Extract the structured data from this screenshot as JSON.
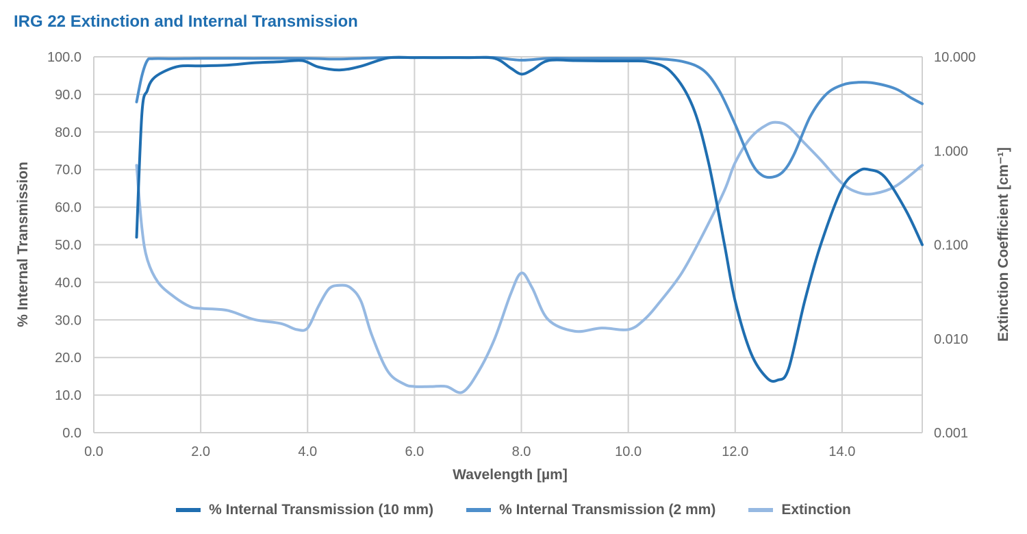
{
  "chart_data": {
    "type": "line",
    "title": "IRG 22 Extinction and Internal Transmission",
    "xlabel": "Wavelength [µm]",
    "ylabel_left": "% Internal Transmission",
    "ylabel_right": "Extinction Coefficient [cm⁻¹]",
    "xlim": [
      0,
      15.5
    ],
    "ylim_left": [
      0,
      100
    ],
    "ylim_right_log": [
      0.001,
      10
    ],
    "x_ticks": [
      "0.0",
      "2.0",
      "4.0",
      "6.0",
      "8.0",
      "10.0",
      "12.0",
      "14.0"
    ],
    "y_ticks_left": [
      "0.0",
      "10.0",
      "20.0",
      "30.0",
      "40.0",
      "50.0",
      "60.0",
      "70.0",
      "80.0",
      "90.0",
      "100.0"
    ],
    "y_ticks_right": [
      "0.001",
      "0.010",
      "0.100",
      "1.000",
      "10.000"
    ],
    "grid": true,
    "legend_position": "bottom",
    "series": [
      {
        "name": "% Internal Transmission (10 mm)",
        "axis": "left",
        "color": "#1f6eb0",
        "x": [
          0.8,
          0.9,
          1.0,
          1.1,
          1.3,
          1.6,
          2.0,
          2.5,
          3.0,
          3.5,
          3.9,
          4.2,
          4.6,
          5.0,
          5.5,
          6.0,
          6.5,
          7.0,
          7.5,
          7.8,
          8.0,
          8.2,
          8.5,
          9.0,
          9.5,
          10.0,
          10.4,
          10.8,
          11.2,
          11.5,
          11.8,
          12.0,
          12.3,
          12.6,
          12.8,
          13.0,
          13.3,
          13.6,
          14.0,
          14.3,
          14.5,
          14.8,
          15.2,
          15.5
        ],
        "y": [
          52,
          85,
          91,
          94,
          96,
          97.5,
          97.6,
          97.8,
          98.4,
          98.7,
          99,
          97.3,
          96.5,
          97.5,
          99.7,
          99.8,
          99.8,
          99.8,
          99.6,
          97,
          95.4,
          96.5,
          99,
          99,
          98.9,
          98.9,
          98.6,
          96,
          87,
          72,
          50,
          35,
          21,
          14.5,
          14,
          17,
          35,
          50,
          65,
          69.5,
          70,
          68,
          59,
          50
        ]
      },
      {
        "name": "% Internal Transmission (2 mm)",
        "axis": "left",
        "color": "#4e8fcb",
        "x": [
          0.8,
          0.9,
          1.0,
          1.1,
          1.5,
          2.0,
          3.0,
          4.0,
          4.5,
          5.0,
          5.5,
          6.0,
          7.0,
          7.5,
          8.0,
          8.5,
          9.0,
          10.0,
          10.5,
          11.0,
          11.4,
          11.7,
          12.0,
          12.3,
          12.5,
          12.7,
          12.9,
          13.1,
          13.4,
          13.7,
          14.0,
          14.3,
          14.6,
          15.0,
          15.3,
          15.5
        ],
        "y": [
          88,
          95,
          99,
          99.5,
          99.5,
          99.6,
          99.6,
          99.6,
          99.4,
          99.6,
          99.8,
          99.8,
          99.8,
          99.8,
          99.1,
          99.6,
          99.6,
          99.6,
          99.5,
          98.8,
          96.5,
          91,
          82,
          72,
          68.5,
          68,
          69.5,
          74,
          84,
          90,
          92.5,
          93.2,
          93,
          91.5,
          89,
          87.5
        ]
      },
      {
        "name": "Extinction",
        "axis": "right",
        "color": "#96b9e2",
        "x": [
          0.8,
          0.9,
          1.0,
          1.2,
          1.5,
          1.8,
          2.0,
          2.5,
          3.0,
          3.5,
          3.8,
          4.0,
          4.2,
          4.4,
          4.6,
          4.8,
          5.0,
          5.2,
          5.5,
          5.8,
          6.0,
          6.3,
          6.6,
          6.9,
          7.2,
          7.5,
          7.8,
          8.0,
          8.2,
          8.5,
          9.0,
          9.5,
          10.0,
          10.3,
          10.6,
          11.0,
          11.4,
          11.8,
          12.0,
          12.3,
          12.6,
          12.8,
          13.0,
          13.3,
          13.6,
          14.0,
          14.3,
          14.6,
          15.0,
          15.5
        ],
        "y": [
          0.7,
          0.15,
          0.07,
          0.04,
          0.028,
          0.022,
          0.021,
          0.02,
          0.016,
          0.0145,
          0.0125,
          0.013,
          0.022,
          0.034,
          0.037,
          0.035,
          0.025,
          0.011,
          0.0045,
          0.0033,
          0.0031,
          0.0031,
          0.0031,
          0.0027,
          0.0045,
          0.01,
          0.03,
          0.05,
          0.035,
          0.016,
          0.012,
          0.013,
          0.0125,
          0.016,
          0.025,
          0.05,
          0.13,
          0.38,
          0.75,
          1.4,
          1.9,
          2.0,
          1.8,
          1.2,
          0.8,
          0.45,
          0.36,
          0.35,
          0.42,
          0.7
        ]
      }
    ]
  }
}
